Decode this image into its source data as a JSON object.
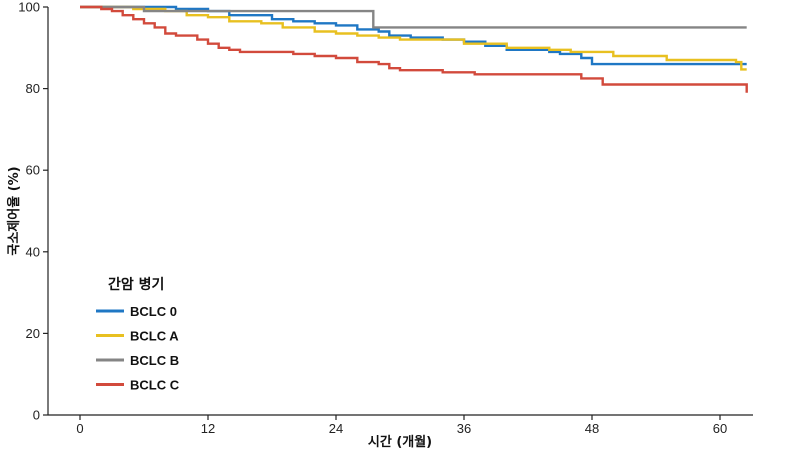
{
  "chart_data": {
    "type": "line",
    "step": true,
    "xlabel": "시간 (개월)",
    "ylabel": "국소제어율 (%)",
    "xlim": [
      -6,
      62.5
    ],
    "ylim": [
      0,
      100
    ],
    "xticks": [
      0,
      12,
      24,
      36,
      48,
      60
    ],
    "yticks": [
      0,
      20,
      40,
      60,
      80,
      100
    ],
    "grid": false,
    "legend": {
      "title": "간암 병기",
      "position": "bottom-left"
    },
    "series": [
      {
        "name": "BCLC 0",
        "color": "#1f77c4",
        "points": [
          [
            0,
            100
          ],
          [
            5,
            100
          ],
          [
            9,
            99.5
          ],
          [
            12,
            99
          ],
          [
            14,
            98
          ],
          [
            18,
            97
          ],
          [
            20,
            96.5
          ],
          [
            22,
            96
          ],
          [
            24,
            95.5
          ],
          [
            26,
            94.5
          ],
          [
            28,
            94
          ],
          [
            29,
            93
          ],
          [
            31,
            92.5
          ],
          [
            34,
            92
          ],
          [
            36,
            91.5
          ],
          [
            38,
            90.5
          ],
          [
            40,
            89.5
          ],
          [
            44,
            89
          ],
          [
            45,
            88.5
          ],
          [
            47,
            87.5
          ],
          [
            48,
            86
          ],
          [
            62.5,
            86
          ]
        ]
      },
      {
        "name": "BCLC A",
        "color": "#e8c020",
        "points": [
          [
            0,
            100
          ],
          [
            5,
            99.5
          ],
          [
            8,
            99
          ],
          [
            10,
            98
          ],
          [
            12,
            97.5
          ],
          [
            14,
            96.5
          ],
          [
            17,
            96
          ],
          [
            19,
            95
          ],
          [
            22,
            94
          ],
          [
            24,
            93.5
          ],
          [
            26,
            93
          ],
          [
            28,
            92.5
          ],
          [
            30,
            92
          ],
          [
            34,
            92
          ],
          [
            36,
            91
          ],
          [
            40,
            90
          ],
          [
            44,
            89.5
          ],
          [
            46,
            89
          ],
          [
            50,
            88
          ],
          [
            55,
            87
          ],
          [
            61.5,
            86.5
          ],
          [
            62,
            84.7
          ],
          [
            62.5,
            84.7
          ]
        ]
      },
      {
        "name": "BCLC B",
        "color": "#858585",
        "points": [
          [
            0,
            100
          ],
          [
            6,
            99
          ],
          [
            27.5,
            99
          ],
          [
            27.5,
            95
          ],
          [
            62.5,
            95
          ]
        ]
      },
      {
        "name": "BCLC C",
        "color": "#d24a3c",
        "points": [
          [
            0,
            100
          ],
          [
            2,
            99.5
          ],
          [
            3,
            99
          ],
          [
            4,
            98
          ],
          [
            5,
            97
          ],
          [
            6,
            96
          ],
          [
            7,
            95
          ],
          [
            8,
            93.5
          ],
          [
            9,
            93
          ],
          [
            11,
            92
          ],
          [
            12,
            91
          ],
          [
            13,
            90
          ],
          [
            14,
            89.5
          ],
          [
            15,
            89
          ],
          [
            20,
            88.5
          ],
          [
            22,
            88
          ],
          [
            24,
            87.5
          ],
          [
            26,
            86.5
          ],
          [
            28,
            86
          ],
          [
            29,
            85
          ],
          [
            30,
            84.5
          ],
          [
            34,
            84
          ],
          [
            37,
            83.5
          ],
          [
            47,
            82.5
          ],
          [
            49,
            81
          ],
          [
            62.2,
            81
          ],
          [
            62.5,
            79
          ]
        ]
      }
    ]
  }
}
